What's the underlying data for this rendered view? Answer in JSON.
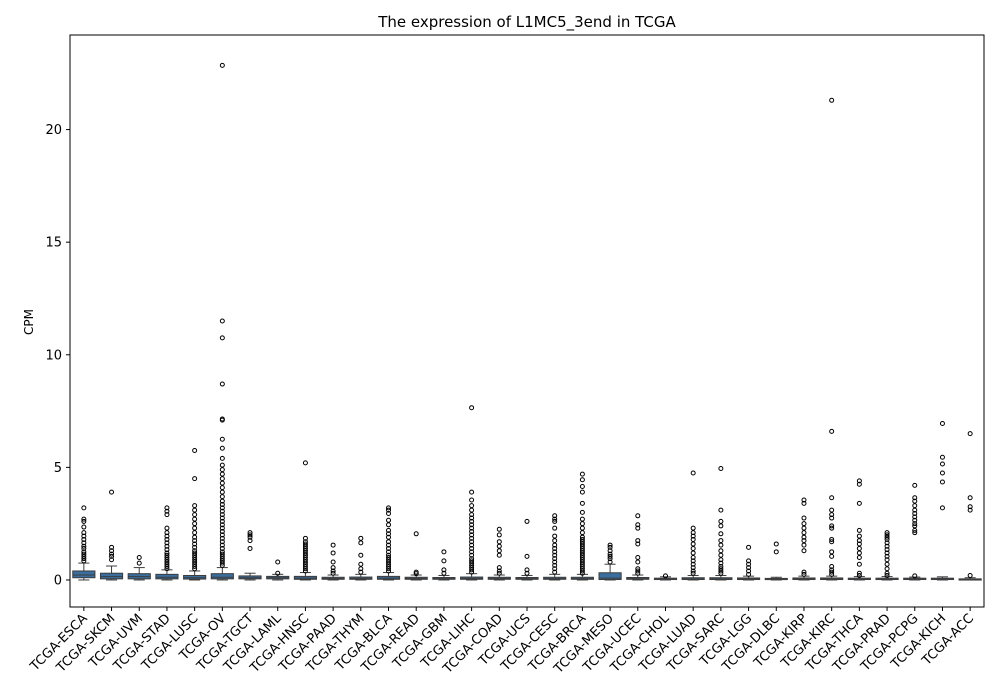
{
  "chart_data": {
    "type": "box",
    "title": "The expression of L1MC5_3end in TCGA",
    "xlabel": "",
    "ylabel": "CPM",
    "ylim": [
      -1.2,
      24.2
    ],
    "yticks": [
      0,
      5,
      10,
      15,
      20
    ],
    "grid": false,
    "box_color": "#3a6e9e",
    "categories": [
      {
        "name": "TCGA-ESCA",
        "q1": 0.1,
        "median": 0.22,
        "q3": 0.4,
        "wlo": 0.0,
        "whi": 0.75,
        "outliers": [
          0.85,
          0.95,
          1.05,
          1.15,
          1.25,
          1.4,
          1.5,
          1.65,
          1.8,
          1.95,
          2.1,
          2.35,
          2.6,
          2.7,
          3.2
        ]
      },
      {
        "name": "TCGA-SKCM",
        "q1": 0.05,
        "median": 0.15,
        "q3": 0.3,
        "wlo": 0.0,
        "whi": 0.62,
        "outliers": [
          0.9,
          1.05,
          1.15,
          1.3,
          1.45,
          3.9
        ]
      },
      {
        "name": "TCGA-UVM",
        "q1": 0.05,
        "median": 0.15,
        "q3": 0.28,
        "wlo": 0.0,
        "whi": 0.55,
        "outliers": [
          0.75,
          1.0
        ]
      },
      {
        "name": "TCGA-STAD",
        "q1": 0.05,
        "median": 0.12,
        "q3": 0.25,
        "wlo": 0.0,
        "whi": 0.45,
        "outliers": [
          0.5,
          0.6,
          0.7,
          0.8,
          0.9,
          1.0,
          1.1,
          1.2,
          1.35,
          1.5,
          1.65,
          1.8,
          1.95,
          2.1,
          2.3,
          2.9,
          3.05,
          3.2
        ]
      },
      {
        "name": "TCGA-LUSC",
        "q1": 0.04,
        "median": 0.1,
        "q3": 0.2,
        "wlo": 0.0,
        "whi": 0.4,
        "outliers": [
          0.5,
          0.6,
          0.7,
          0.8,
          0.9,
          1.0,
          1.1,
          1.2,
          1.3,
          1.45,
          1.6,
          1.75,
          1.9,
          2.1,
          2.3,
          2.5,
          2.7,
          2.9,
          3.1,
          3.3,
          4.5,
          5.75
        ]
      },
      {
        "name": "TCGA-OV",
        "q1": 0.05,
        "median": 0.12,
        "q3": 0.28,
        "wlo": 0.0,
        "whi": 0.55,
        "outliers": [
          0.65,
          0.75,
          0.85,
          0.95,
          1.05,
          1.15,
          1.25,
          1.4,
          1.55,
          1.7,
          1.85,
          2.0,
          2.15,
          2.3,
          2.45,
          2.6,
          2.75,
          2.9,
          3.05,
          3.2,
          3.35,
          3.5,
          3.7,
          3.9,
          4.1,
          4.3,
          4.5,
          4.7,
          4.9,
          5.1,
          5.4,
          5.85,
          6.25,
          7.1,
          7.15,
          8.7,
          10.75,
          11.5,
          22.85
        ]
      },
      {
        "name": "TCGA-TGCT",
        "q1": 0.05,
        "median": 0.1,
        "q3": 0.18,
        "wlo": 0.0,
        "whi": 0.3,
        "outliers": [
          1.4,
          1.75,
          1.9,
          2.0,
          2.1
        ]
      },
      {
        "name": "TCGA-LAML",
        "q1": 0.05,
        "median": 0.1,
        "q3": 0.16,
        "wlo": 0.0,
        "whi": 0.25,
        "outliers": [
          0.3,
          0.8
        ]
      },
      {
        "name": "TCGA-HNSC",
        "q1": 0.03,
        "median": 0.08,
        "q3": 0.16,
        "wlo": 0.0,
        "whi": 0.33,
        "outliers": [
          0.4,
          0.5,
          0.6,
          0.7,
          0.8,
          0.9,
          1.0,
          1.1,
          1.2,
          1.3,
          1.4,
          1.5,
          1.6,
          1.7,
          1.85,
          5.2
        ]
      },
      {
        "name": "TCGA-PAAD",
        "q1": 0.03,
        "median": 0.07,
        "q3": 0.12,
        "wlo": 0.0,
        "whi": 0.22,
        "outliers": [
          0.3,
          0.4,
          0.55,
          0.8,
          1.2,
          1.55
        ]
      },
      {
        "name": "TCGA-THYM",
        "q1": 0.03,
        "median": 0.07,
        "q3": 0.13,
        "wlo": 0.0,
        "whi": 0.25,
        "outliers": [
          0.35,
          0.5,
          0.7,
          1.1,
          1.65,
          1.85
        ]
      },
      {
        "name": "TCGA-BLCA",
        "q1": 0.03,
        "median": 0.08,
        "q3": 0.16,
        "wlo": 0.0,
        "whi": 0.33,
        "outliers": [
          0.4,
          0.5,
          0.6,
          0.7,
          0.8,
          0.9,
          1.0,
          1.1,
          1.25,
          1.4,
          1.55,
          1.7,
          1.9,
          2.05,
          2.2,
          2.45,
          2.65,
          2.95,
          3.1,
          3.2
        ]
      },
      {
        "name": "TCGA-READ",
        "q1": 0.03,
        "median": 0.07,
        "q3": 0.12,
        "wlo": 0.0,
        "whi": 0.22,
        "outliers": [
          0.28,
          0.35,
          2.05
        ]
      },
      {
        "name": "TCGA-GBM",
        "q1": 0.03,
        "median": 0.06,
        "q3": 0.11,
        "wlo": 0.0,
        "whi": 0.2,
        "outliers": [
          0.3,
          0.45,
          0.85,
          1.25
        ]
      },
      {
        "name": "TCGA-LIHC",
        "q1": 0.03,
        "median": 0.07,
        "q3": 0.13,
        "wlo": 0.0,
        "whi": 0.28,
        "outliers": [
          0.35,
          0.45,
          0.55,
          0.65,
          0.75,
          0.85,
          0.95,
          1.1,
          1.25,
          1.4,
          1.55,
          1.7,
          1.85,
          2.0,
          2.15,
          2.3,
          2.45,
          2.6,
          2.75,
          2.9,
          3.1,
          3.3,
          3.55,
          3.9,
          7.65
        ]
      },
      {
        "name": "TCGA-COAD",
        "q1": 0.03,
        "median": 0.07,
        "q3": 0.12,
        "wlo": 0.0,
        "whi": 0.22,
        "outliers": [
          0.3,
          0.4,
          0.55,
          1.1,
          1.3,
          1.5,
          1.7,
          2.0,
          2.25
        ]
      },
      {
        "name": "TCGA-UCS",
        "q1": 0.03,
        "median": 0.06,
        "q3": 0.11,
        "wlo": 0.0,
        "whi": 0.2,
        "outliers": [
          0.3,
          0.45,
          1.05,
          2.6
        ]
      },
      {
        "name": "TCGA-CESC",
        "q1": 0.03,
        "median": 0.06,
        "q3": 0.12,
        "wlo": 0.0,
        "whi": 0.25,
        "outliers": [
          0.35,
          0.5,
          0.65,
          0.8,
          0.95,
          1.1,
          1.25,
          1.4,
          1.55,
          1.75,
          1.95,
          2.3,
          2.6,
          2.7,
          2.85
        ]
      },
      {
        "name": "TCGA-BRCA",
        "q1": 0.03,
        "median": 0.06,
        "q3": 0.12,
        "wlo": 0.0,
        "whi": 0.25,
        "outliers": [
          0.3,
          0.4,
          0.5,
          0.6,
          0.7,
          0.8,
          0.9,
          1.0,
          1.1,
          1.2,
          1.3,
          1.4,
          1.5,
          1.6,
          1.7,
          1.8,
          1.9,
          2.1,
          2.3,
          2.5,
          2.7,
          3.0,
          3.4,
          3.9,
          4.15,
          4.45,
          4.7
        ]
      },
      {
        "name": "TCGA-MESO",
        "q1": 0.02,
        "median": 0.08,
        "q3": 0.32,
        "wlo": 0.0,
        "whi": 0.7,
        "outliers": [
          0.8,
          0.95,
          1.05,
          1.15,
          1.3,
          1.45,
          1.55
        ]
      },
      {
        "name": "TCGA-UCEC",
        "q1": 0.03,
        "median": 0.06,
        "q3": 0.11,
        "wlo": 0.0,
        "whi": 0.22,
        "outliers": [
          0.3,
          0.4,
          0.5,
          0.8,
          1.0,
          1.6,
          1.75,
          2.3,
          2.45,
          2.85
        ]
      },
      {
        "name": "TCGA-CHOL",
        "q1": 0.02,
        "median": 0.04,
        "q3": 0.08,
        "wlo": 0.0,
        "whi": 0.14,
        "outliers": [
          0.18
        ]
      },
      {
        "name": "TCGA-LUAD",
        "q1": 0.02,
        "median": 0.05,
        "q3": 0.1,
        "wlo": 0.0,
        "whi": 0.2,
        "outliers": [
          0.3,
          0.4,
          0.55,
          0.7,
          0.85,
          1.0,
          1.2,
          1.4,
          1.6,
          1.8,
          1.95,
          2.1,
          2.3,
          4.75
        ]
      },
      {
        "name": "TCGA-SARC",
        "q1": 0.02,
        "median": 0.05,
        "q3": 0.1,
        "wlo": 0.0,
        "whi": 0.2,
        "outliers": [
          0.3,
          0.4,
          0.5,
          0.6,
          0.75,
          0.9,
          1.1,
          1.3,
          1.55,
          1.75,
          2.05,
          2.4,
          2.6,
          3.1,
          4.95
        ]
      },
      {
        "name": "TCGA-LGG",
        "q1": 0.02,
        "median": 0.05,
        "q3": 0.09,
        "wlo": 0.0,
        "whi": 0.17,
        "outliers": [
          0.25,
          0.4,
          0.55,
          0.7,
          0.85,
          1.45
        ]
      },
      {
        "name": "TCGA-DLBC",
        "q1": 0.02,
        "median": 0.04,
        "q3": 0.07,
        "wlo": 0.0,
        "whi": 0.12,
        "outliers": [
          1.25,
          1.6
        ]
      },
      {
        "name": "TCGA-KIRP",
        "q1": 0.02,
        "median": 0.05,
        "q3": 0.09,
        "wlo": 0.0,
        "whi": 0.17,
        "outliers": [
          0.25,
          0.35,
          1.3,
          1.55,
          1.75,
          1.9,
          2.1,
          2.3,
          2.5,
          2.75,
          3.4,
          3.55
        ]
      },
      {
        "name": "TCGA-KIRC",
        "q1": 0.02,
        "median": 0.05,
        "q3": 0.09,
        "wlo": 0.0,
        "whi": 0.17,
        "outliers": [
          0.25,
          0.35,
          0.45,
          0.6,
          1.05,
          1.25,
          1.7,
          1.8,
          2.3,
          2.4,
          2.75,
          2.9,
          3.1,
          3.65,
          6.6,
          21.3
        ]
      },
      {
        "name": "TCGA-THCA",
        "q1": 0.02,
        "median": 0.04,
        "q3": 0.08,
        "wlo": 0.0,
        "whi": 0.15,
        "outliers": [
          0.2,
          0.3,
          0.7,
          1.0,
          1.2,
          1.4,
          1.6,
          1.75,
          1.95,
          2.2,
          3.4,
          4.25,
          4.4
        ]
      },
      {
        "name": "TCGA-PRAD",
        "q1": 0.02,
        "median": 0.04,
        "q3": 0.08,
        "wlo": 0.0,
        "whi": 0.15,
        "outliers": [
          0.2,
          0.3,
          0.5,
          0.7,
          0.9,
          1.05,
          1.2,
          1.35,
          1.5,
          1.65,
          1.8,
          1.9,
          2.0,
          2.1
        ]
      },
      {
        "name": "TCGA-PCPG",
        "q1": 0.02,
        "median": 0.04,
        "q3": 0.08,
        "wlo": 0.0,
        "whi": 0.13,
        "outliers": [
          0.18,
          2.1,
          2.2,
          2.4,
          2.5,
          2.65,
          2.8,
          2.95,
          3.1,
          3.3,
          3.5,
          3.65,
          4.2
        ]
      },
      {
        "name": "TCGA-KICH",
        "q1": 0.02,
        "median": 0.04,
        "q3": 0.08,
        "wlo": 0.0,
        "whi": 0.14,
        "outliers": [
          3.2,
          4.35,
          4.75,
          5.15,
          5.45,
          6.95
        ]
      },
      {
        "name": "TCGA-ACC",
        "q1": 0.01,
        "median": 0.03,
        "q3": 0.05,
        "wlo": 0.0,
        "whi": 0.1,
        "outliers": [
          0.2,
          3.1,
          3.25,
          3.65,
          6.5
        ]
      }
    ]
  }
}
